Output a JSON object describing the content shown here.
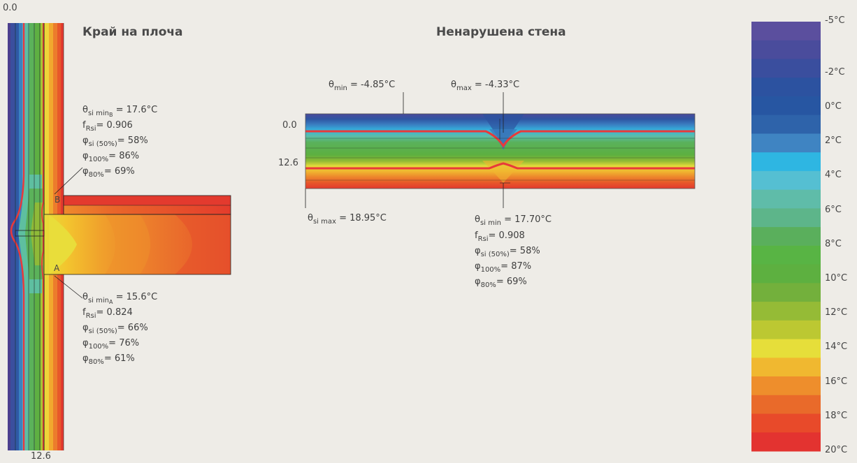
{
  "titles": {
    "slab_edge": "Край на плоча",
    "undisturbed_wall": "Ненарушена стена"
  },
  "slab_edge": {
    "axis_top": "0.0",
    "axis_bottom": "12.6",
    "marker_b": "B",
    "marker_a": "A",
    "point_b": {
      "theta_sym": "θ",
      "theta_sub": "si min",
      "theta_subsub": "B",
      "theta_val": " = 17.6°C",
      "f_sym": "f",
      "f_sub": "Rsi",
      "f_val": "= 0.906",
      "phi_si_sym": "φ",
      "phi_si_sub": "si (50%)",
      "phi_si_val": "= 58%",
      "phi100_sym": "φ",
      "phi100_sub": "100%",
      "phi100_val": "= 86%",
      "phi80_sym": "φ",
      "phi80_sub": "80%",
      "phi80_val": "= 69%"
    },
    "point_a": {
      "theta_sym": "θ",
      "theta_sub": "si min",
      "theta_subsub": "A",
      "theta_val": " = 15.6°C",
      "f_sym": "f",
      "f_sub": "Rsi",
      "f_val": "= 0.824",
      "phi_si_sym": "φ",
      "phi_si_sub": "si (50%)",
      "phi_si_val": "= 66%",
      "phi100_sym": "φ",
      "phi100_sub": "100%",
      "phi100_val": "= 76%",
      "phi80_sym": "φ",
      "phi80_sub": "80%",
      "phi80_val": "= 61%"
    }
  },
  "wall": {
    "axis_top": "0.0",
    "axis_bottom": "12.6",
    "theta_min": {
      "sym": "θ",
      "sub": "min",
      "val": " = -4.85°C"
    },
    "theta_max": {
      "sym": "θ",
      "sub": "max",
      "val": " = -4.33°C"
    },
    "theta_si_max": {
      "sym": "θ",
      "sub": "si max",
      "val": " = 18.95°C"
    },
    "point": {
      "theta_sym": "θ",
      "theta_sub": "si min",
      "theta_val": " = 17.70°C",
      "f_sym": "f",
      "f_sub": "Rsi",
      "f_val": "= 0.908",
      "phi_si_sym": "φ",
      "phi_si_sub": "si (50%)",
      "phi_si_val": "= 58%",
      "phi100_sym": "φ",
      "phi100_sub": "100%",
      "phi100_val": "= 87%",
      "phi80_sym": "φ",
      "phi80_sub": "80%",
      "phi80_val": "= 69%"
    }
  },
  "legend": {
    "ticks": [
      "-5°C",
      "-2°C",
      "0°C",
      "2°C",
      "4°C",
      "6°C",
      "8°C",
      "10°C",
      "12°C",
      "14°C",
      "16°C",
      "18°C",
      "20°C"
    ],
    "tick_values": [
      -5,
      -2,
      0,
      2,
      4,
      6,
      8,
      10,
      12,
      14,
      16,
      18,
      20
    ],
    "colors": [
      "#5b4f9e",
      "#4a4c9c",
      "#3a4e9e",
      "#2c52a0",
      "#2756a2",
      "#2e63aa",
      "#3f84c2",
      "#2eb6e2",
      "#55bfd2",
      "#5fbca9",
      "#5db58a",
      "#5aaf5c",
      "#58b444",
      "#5db040",
      "#73b03c",
      "#95bb36",
      "#bcc832",
      "#e6de3a",
      "#f0b830",
      "#ee8e2c",
      "#e96a2a",
      "#e84a2a",
      "#e33330"
    ],
    "band_values": [
      -5,
      -4,
      -3,
      -2,
      -1,
      0,
      1,
      2,
      3,
      4,
      5,
      6,
      7,
      8,
      9,
      10,
      11,
      12,
      13,
      14,
      15,
      16,
      17,
      18,
      19,
      20
    ]
  },
  "colors": {
    "background": "#eeece7",
    "isotherm": "#e83a3a"
  }
}
